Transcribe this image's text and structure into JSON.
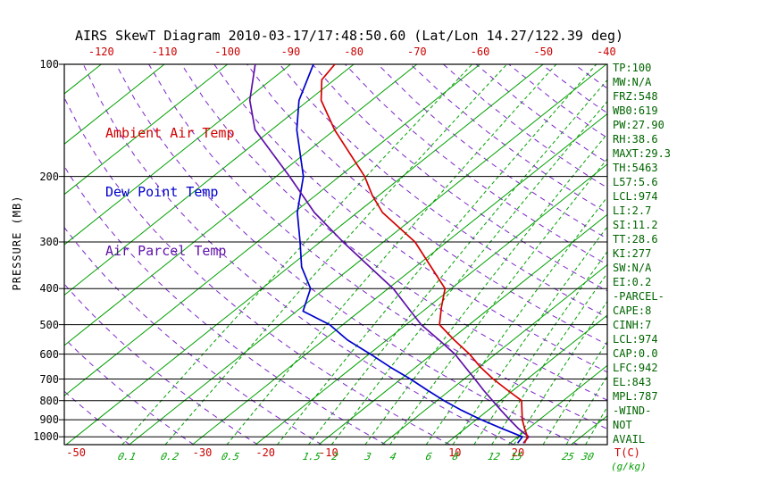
{
  "title": "AIRS SkewT Diagram 2010-03-17/17:48:50.60 (Lat/Lon 14.27/122.39 deg)",
  "legend": {
    "ambient": "Ambient Air Temp",
    "dew": "Dew Point Temp",
    "parcel": "Air Parcel Temp"
  },
  "colors": {
    "ambient": "#D40000",
    "dew": "#0000CC",
    "parcel": "#5E10A8",
    "isotherm_green": "#00A000",
    "adiabat_purple": "#7B25C7",
    "axis_black": "#000000",
    "stats_green": "#006400",
    "tick_red": "#CC0000"
  },
  "axes": {
    "pressure_label": "PRESSURE (MB)",
    "pressure_ticks": [
      100,
      200,
      300,
      400,
      500,
      600,
      700,
      800,
      900,
      1000
    ],
    "top_temp_ticks": [
      -120,
      -110,
      -100,
      -90,
      -80,
      -70,
      -60,
      -50,
      -40
    ],
    "bottom_temp_ticks": [
      -50,
      -30,
      -20,
      -10,
      10,
      20
    ],
    "mixing_ratio_tick_labels": [
      0.1,
      0.2,
      0.5,
      1.5,
      2,
      3,
      4,
      6,
      8,
      12,
      15,
      25,
      30
    ],
    "temp_unit": "T(C)",
    "mixing_unit": "(g/kg)"
  },
  "stats_panel": {
    "lines": [
      "TP:100",
      "MW:N/A",
      "FRZ:548",
      "WB0:619",
      "PW:27.90",
      "RH:38.6",
      "MAXT:29.3",
      "TH:5463",
      "L57:5.6",
      "LCL:974",
      "LI:2.7",
      "SI:11.2",
      "TT:28.6",
      "KI:277",
      "SW:N/A",
      "EI:0.2",
      "-PARCEL-",
      "CAPE:8",
      "CINH:7",
      "LCL:974",
      "CAP:0.0",
      "LFC:942",
      "EL:843",
      "MPL:787",
      "-WIND-",
      "NOT",
      "AVAIL"
    ]
  },
  "chart_data": {
    "type": "line",
    "variant": "skew-t-log-p",
    "title": "AIRS SkewT Diagram 2010-03-17/17:48:50.60 (Lat/Lon 14.27/122.39 deg)",
    "xlabel": "T(C)",
    "ylabel": "PRESSURE (MB)",
    "pressure_range_hpa": [
      100,
      1050
    ],
    "top_axis_temp_range_c": [
      -120,
      -40
    ],
    "isotherms_c": {
      "min": -160,
      "max": 40,
      "step": 10
    },
    "mixing_ratio_lines_gkg": [
      0.1,
      0.2,
      0.5,
      1,
      1.5,
      2,
      3,
      4,
      6,
      8,
      10,
      12,
      15,
      20,
      25,
      30
    ],
    "dry_adiabats_k": {
      "min": 230,
      "max": 470,
      "step": 10
    },
    "series": [
      {
        "name": "Ambient Air Temp",
        "color_key": "ambient",
        "points_p_t": [
          [
            1040,
            22.3
          ],
          [
            1000,
            21.5
          ],
          [
            950,
            19.4
          ],
          [
            900,
            17.3
          ],
          [
            850,
            15.4
          ],
          [
            800,
            13.4
          ],
          [
            750,
            9.1
          ],
          [
            700,
            4.6
          ],
          [
            650,
            0.2
          ],
          [
            600,
            -4.1
          ],
          [
            550,
            -9.3
          ],
          [
            500,
            -14.7
          ],
          [
            450,
            -17.8
          ],
          [
            400,
            -21.0
          ],
          [
            350,
            -27.5
          ],
          [
            300,
            -35.0
          ],
          [
            250,
            -46.0
          ],
          [
            225,
            -51.0
          ],
          [
            200,
            -56.0
          ],
          [
            175,
            -62.5
          ],
          [
            150,
            -70.0
          ],
          [
            125,
            -78.0
          ],
          [
            110,
            -82.0
          ],
          [
            100,
            -83.0
          ]
        ]
      },
      {
        "name": "Dew Point Temp",
        "color_key": "dew",
        "points_p_t": [
          [
            1040,
            21.2
          ],
          [
            1000,
            20.7
          ],
          [
            950,
            15.8
          ],
          [
            900,
            10.8
          ],
          [
            850,
            5.9
          ],
          [
            800,
            1.1
          ],
          [
            750,
            -3.6
          ],
          [
            700,
            -8.5
          ],
          [
            650,
            -14.1
          ],
          [
            600,
            -19.8
          ],
          [
            550,
            -26.2
          ],
          [
            500,
            -32.1
          ],
          [
            460,
            -39.0
          ],
          [
            400,
            -42.3
          ],
          [
            350,
            -48.0
          ],
          [
            300,
            -53.2
          ],
          [
            250,
            -59.5
          ],
          [
            200,
            -65.7
          ],
          [
            150,
            -76.0
          ],
          [
            125,
            -81.5
          ],
          [
            100,
            -86.4
          ]
        ]
      },
      {
        "name": "Air Parcel Temp",
        "color_key": "parcel",
        "points_p_t": [
          [
            1040,
            22.1
          ],
          [
            1000,
            21.7
          ],
          [
            950,
            18.4
          ],
          [
            900,
            15.3
          ],
          [
            850,
            12.1
          ],
          [
            800,
            8.8
          ],
          [
            750,
            5.3
          ],
          [
            700,
            1.7
          ],
          [
            650,
            -2.2
          ],
          [
            600,
            -6.4
          ],
          [
            550,
            -11.7
          ],
          [
            500,
            -17.6
          ],
          [
            450,
            -23.1
          ],
          [
            400,
            -29.2
          ],
          [
            350,
            -37.2
          ],
          [
            300,
            -46.4
          ],
          [
            250,
            -56.8
          ],
          [
            200,
            -67.9
          ],
          [
            150,
            -82.6
          ],
          [
            125,
            -89.3
          ],
          [
            100,
            -95.6
          ]
        ]
      }
    ]
  }
}
